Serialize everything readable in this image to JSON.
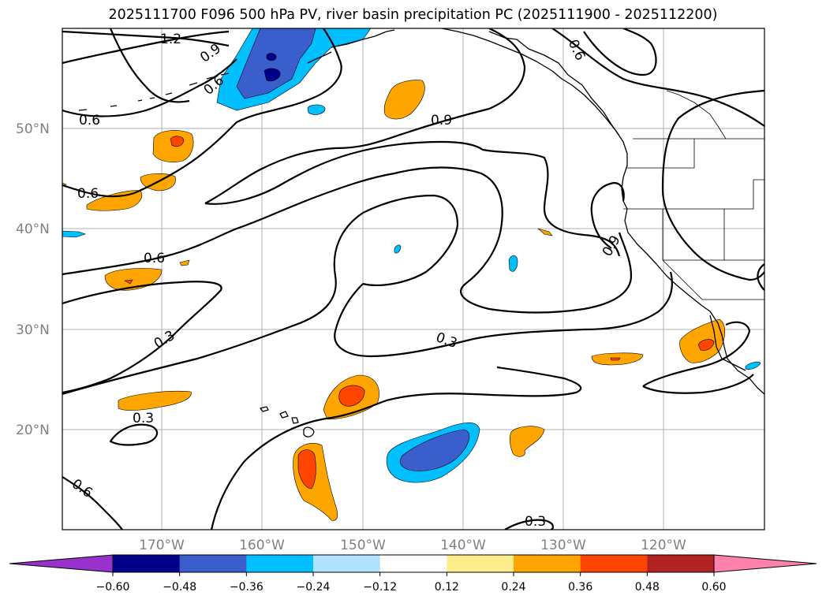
{
  "title": "2025111700 F096 500 hPa PV, river basin precipitation PC (2025111900 - 2025112200)",
  "lat_labels": [
    "50°N",
    "40°N",
    "30°N",
    "20°N"
  ],
  "lon_labels": [
    "170°W",
    "160°W",
    "150°W",
    "140°W",
    "130°W",
    "120°W"
  ],
  "contour_labels": [
    "1.2",
    "0.9",
    "0.6",
    "0.6",
    "0.6",
    "0.9",
    "0.6",
    "0.6",
    "0.9",
    "0.3",
    "0.3",
    "0.3",
    "0.6",
    "0.3"
  ],
  "colorbar": {
    "ticks": [
      "−0.60",
      "−0.48",
      "−0.36",
      "−0.24",
      "−0.12",
      "0.12",
      "0.24",
      "0.36",
      "0.48",
      "0.60"
    ],
    "colors": {
      "under": "#9932CC",
      "bins": [
        "#00008B",
        "#3A5FCD",
        "#00BFFF",
        "#B0E2FF",
        "#FFFFFF",
        "#FFEC8B",
        "#FFA500",
        "#FF4500",
        "#B22222"
      ],
      "over": "#FF82AB"
    }
  }
}
